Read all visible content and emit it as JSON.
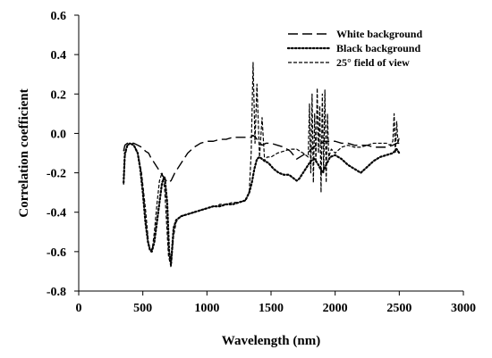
{
  "chart_data": {
    "type": "line",
    "title": "",
    "xlabel": "Wavelength (nm)",
    "ylabel": "Correlation coefficient",
    "xlim": [
      0,
      3000
    ],
    "ylim": [
      -0.8,
      0.6
    ],
    "x_ticks": [
      0,
      500,
      1000,
      1500,
      2000,
      2500,
      3000
    ],
    "y_ticks": [
      -0.8,
      -0.6,
      -0.4,
      -0.2,
      0.0,
      0.2,
      0.4,
      0.6
    ],
    "x_tick_labels": [
      "0",
      "500",
      "1000",
      "1500",
      "2000",
      "2500",
      "3000"
    ],
    "y_tick_labels": [
      "-0.8",
      "-0.6",
      "-0.4",
      "-0.2",
      "0.0",
      "0.2",
      "0.4",
      "0.6"
    ],
    "grid": false,
    "legend_position": "top-right",
    "series": [
      {
        "name": "White background",
        "color": "#000000",
        "dash": "long-dash",
        "x": [
          350,
          360,
          380,
          400,
          430,
          460,
          490,
          520,
          545,
          560,
          580,
          610,
          640,
          670,
          695,
          720,
          750,
          800,
          850,
          900,
          950,
          1000,
          1050,
          1100,
          1150,
          1200,
          1250,
          1300,
          1340,
          1360,
          1380,
          1400,
          1430,
          1460,
          1500,
          1550,
          1600,
          1650,
          1700,
          1750,
          1800,
          1830,
          1860,
          1890,
          1920,
          1950,
          2000,
          2050,
          2100,
          2150,
          2200,
          2250,
          2300,
          2350,
          2400,
          2450,
          2480,
          2500
        ],
        "y": [
          -0.09,
          -0.06,
          -0.05,
          -0.05,
          -0.05,
          -0.06,
          -0.07,
          -0.09,
          -0.1,
          -0.12,
          -0.14,
          -0.17,
          -0.2,
          -0.23,
          -0.25,
          -0.24,
          -0.2,
          -0.15,
          -0.1,
          -0.07,
          -0.05,
          -0.04,
          -0.04,
          -0.03,
          -0.03,
          -0.02,
          -0.02,
          -0.02,
          -0.02,
          -0.01,
          -0.02,
          -0.04,
          -0.06,
          -0.05,
          -0.05,
          -0.06,
          -0.07,
          -0.09,
          -0.13,
          -0.11,
          -0.09,
          -0.07,
          -0.06,
          -0.05,
          -0.04,
          -0.04,
          -0.04,
          -0.05,
          -0.05,
          -0.06,
          -0.06,
          -0.06,
          -0.07,
          -0.07,
          -0.07,
          -0.06,
          -0.05,
          -0.05
        ]
      },
      {
        "name": "Black background",
        "color": "#000000",
        "dash": "dotted",
        "x": [
          350,
          360,
          380,
          400,
          430,
          460,
          480,
          500,
          520,
          540,
          555,
          570,
          590,
          610,
          630,
          650,
          670,
          690,
          705,
          720,
          740,
          760,
          800,
          850,
          900,
          950,
          1000,
          1050,
          1100,
          1150,
          1200,
          1250,
          1300,
          1330,
          1350,
          1370,
          1390,
          1410,
          1430,
          1450,
          1480,
          1520,
          1560,
          1600,
          1640,
          1680,
          1700,
          1720,
          1750,
          1780,
          1810,
          1840,
          1870,
          1900,
          1930,
          1960,
          2000,
          2050,
          2100,
          2150,
          2200,
          2250,
          2300,
          2350,
          2400,
          2450,
          2480,
          2500
        ],
        "y": [
          -0.25,
          -0.1,
          -0.06,
          -0.05,
          -0.06,
          -0.1,
          -0.18,
          -0.3,
          -0.45,
          -0.55,
          -0.59,
          -0.6,
          -0.55,
          -0.45,
          -0.35,
          -0.25,
          -0.22,
          -0.35,
          -0.6,
          -0.66,
          -0.48,
          -0.44,
          -0.42,
          -0.41,
          -0.4,
          -0.39,
          -0.38,
          -0.37,
          -0.37,
          -0.36,
          -0.36,
          -0.35,
          -0.34,
          -0.3,
          -0.25,
          -0.18,
          -0.13,
          -0.12,
          -0.13,
          -0.14,
          -0.15,
          -0.18,
          -0.2,
          -0.21,
          -0.21,
          -0.23,
          -0.24,
          -0.23,
          -0.2,
          -0.17,
          -0.14,
          -0.13,
          -0.16,
          -0.2,
          -0.16,
          -0.12,
          -0.11,
          -0.13,
          -0.16,
          -0.18,
          -0.2,
          -0.17,
          -0.14,
          -0.12,
          -0.11,
          -0.1,
          -0.08,
          -0.1
        ]
      },
      {
        "name": "25° field of view",
        "color": "#000000",
        "dash": "short-dash",
        "x": [
          350,
          360,
          380,
          400,
          430,
          460,
          490,
          520,
          545,
          560,
          575,
          590,
          610,
          630,
          650,
          670,
          685,
          700,
          720,
          740,
          760,
          780,
          800,
          850,
          900,
          950,
          1000,
          1050,
          1080,
          1100,
          1120,
          1150,
          1200,
          1250,
          1300,
          1330,
          1345,
          1360,
          1375,
          1390,
          1410,
          1430,
          1450,
          1470,
          1500,
          1550,
          1600,
          1650,
          1700,
          1750,
          1790,
          1800,
          1810,
          1820,
          1830,
          1840,
          1850,
          1860,
          1870,
          1880,
          1890,
          1900,
          1910,
          1920,
          1930,
          1940,
          1950,
          1970,
          2000,
          2050,
          2100,
          2150,
          2200,
          2250,
          2300,
          2350,
          2400,
          2430,
          2450,
          2460,
          2470,
          2480,
          2490,
          2500
        ],
        "y": [
          -0.26,
          -0.12,
          -0.06,
          -0.05,
          -0.06,
          -0.1,
          -0.2,
          -0.38,
          -0.56,
          -0.6,
          -0.58,
          -0.5,
          -0.36,
          -0.24,
          -0.2,
          -0.28,
          -0.45,
          -0.62,
          -0.68,
          -0.52,
          -0.45,
          -0.43,
          -0.42,
          -0.41,
          -0.4,
          -0.39,
          -0.38,
          -0.37,
          -0.37,
          -0.36,
          -0.36,
          -0.36,
          -0.35,
          -0.35,
          -0.34,
          -0.3,
          -0.1,
          0.36,
          -0.05,
          0.25,
          -0.12,
          0.08,
          -0.14,
          -0.12,
          -0.12,
          -0.1,
          -0.09,
          -0.08,
          -0.08,
          -0.1,
          -0.12,
          0.15,
          -0.2,
          0.2,
          -0.25,
          0.1,
          -0.15,
          0.23,
          -0.1,
          0.14,
          -0.3,
          0.2,
          -0.2,
          0.22,
          -0.25,
          0.1,
          -0.12,
          -0.08,
          -0.1,
          -0.07,
          -0.06,
          -0.07,
          -0.07,
          -0.06,
          -0.05,
          -0.05,
          -0.05,
          -0.06,
          -0.04,
          0.1,
          -0.1,
          0.06,
          -0.05,
          -0.02
        ]
      }
    ]
  }
}
